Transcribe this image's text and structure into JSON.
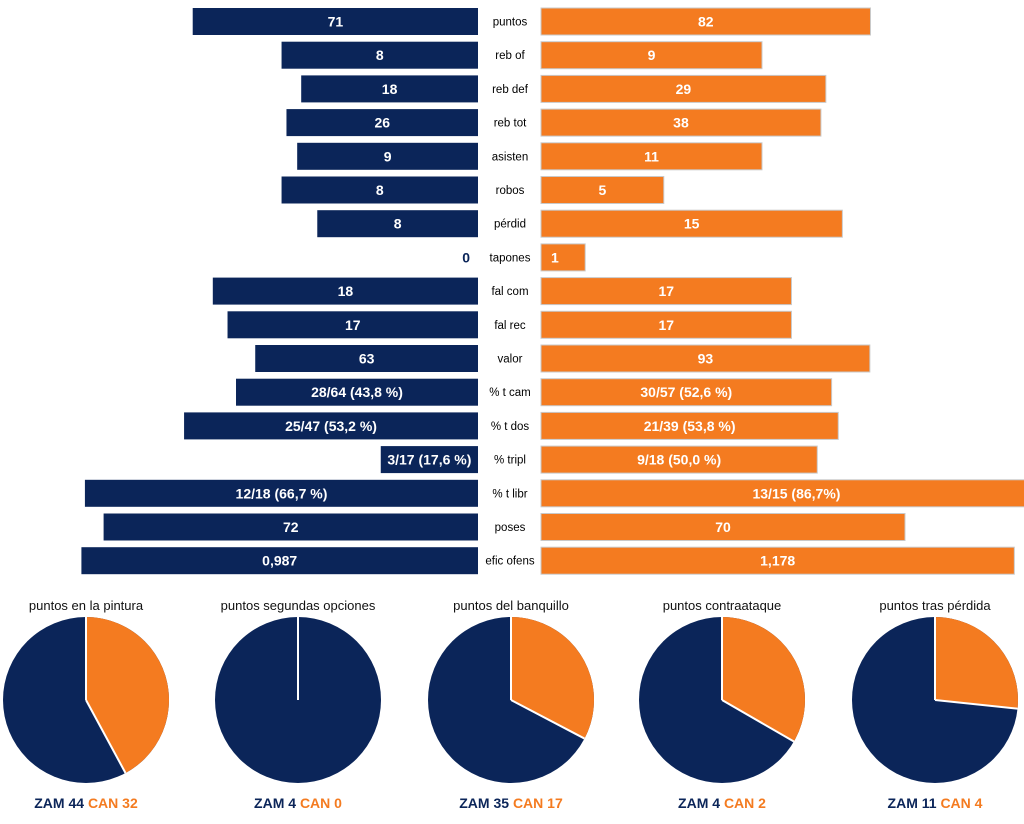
{
  "colors": {
    "zam": "#0b2559",
    "can": "#f47b20"
  },
  "chart_data": [
    {
      "type": "bar",
      "orientation": "horizontal-butterfly",
      "categories": [
        "puntos",
        "reb of",
        "reb def",
        "reb tot",
        "asisten",
        "robos",
        "pérdid",
        "tapones",
        "fal com",
        "fal rec",
        "valor",
        "% t cam",
        "% t dos",
        "% tripl",
        "% t libr",
        "poses",
        "efic ofens"
      ],
      "series": [
        {
          "name": "ZAM",
          "values": [
            71,
            8,
            18,
            26,
            9,
            8,
            8,
            0,
            18,
            17,
            63,
            43.8,
            53.2,
            17.6,
            66.7,
            72,
            0.987
          ],
          "labels": [
            "71",
            "8",
            "18",
            "26",
            "9",
            "8",
            "8",
            "0",
            "18",
            "17",
            "63",
            "28/64 (43,8 %)",
            "25/47 (53,2 %)",
            "3/17 (17,6 %)",
            "12/18 (66,7 %)",
            "72",
            "0,987"
          ]
        },
        {
          "name": "CAN",
          "values": [
            82,
            9,
            29,
            38,
            11,
            5,
            15,
            1,
            17,
            17,
            93,
            52.6,
            53.8,
            50.0,
            86.7,
            70,
            1.178
          ],
          "labels": [
            "82",
            "9",
            "29",
            "38",
            "11",
            "5",
            "15",
            "1",
            "17",
            "17",
            "93",
            "30/57 (52,6 %)",
            "21/39 (53,8 %)",
            "9/18 (50,0 %)",
            "13/15 (86,7%)",
            "70",
            "1,178"
          ]
        }
      ]
    },
    {
      "type": "pie",
      "title": "puntos en la pintura",
      "categories": [
        "ZAM",
        "CAN"
      ],
      "values": [
        44,
        32
      ]
    },
    {
      "type": "pie",
      "title": "puntos segundas opciones",
      "categories": [
        "ZAM",
        "CAN"
      ],
      "values": [
        4,
        0
      ]
    },
    {
      "type": "pie",
      "title": "puntos del banquillo",
      "categories": [
        "ZAM",
        "CAN"
      ],
      "values": [
        35,
        17
      ]
    },
    {
      "type": "pie",
      "title": "puntos contraataque",
      "categories": [
        "ZAM",
        "CAN"
      ],
      "values": [
        4,
        2
      ]
    },
    {
      "type": "pie",
      "title": "puntos tras pérdida",
      "categories": [
        "ZAM",
        "CAN"
      ],
      "values": [
        11,
        4
      ]
    }
  ]
}
